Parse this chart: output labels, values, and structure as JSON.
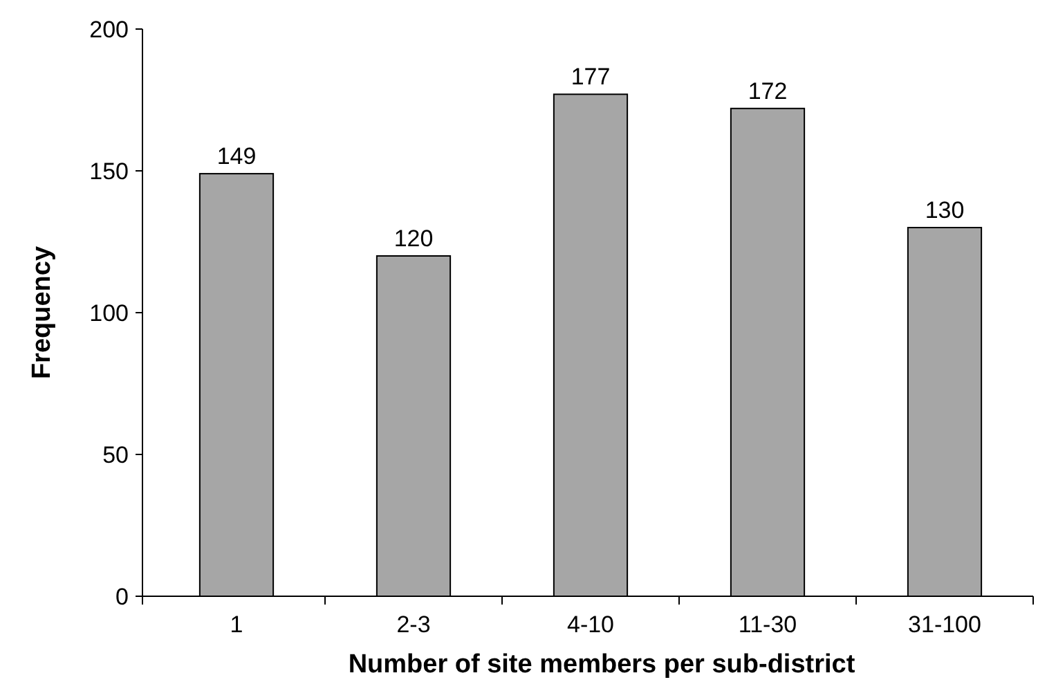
{
  "chart_data": {
    "type": "bar",
    "xlabel": "Number of site members per sub-district",
    "ylabel": "Frequency",
    "categories": [
      "1",
      "2-3",
      "4-10",
      "11-30",
      "31-100"
    ],
    "values": [
      149,
      120,
      177,
      172,
      130
    ],
    "color": "#a6a6a6",
    "ylim": [
      0,
      200
    ],
    "yticks": [
      0,
      50,
      100,
      150,
      200
    ],
    "data_labels": true,
    "grid": false
  }
}
